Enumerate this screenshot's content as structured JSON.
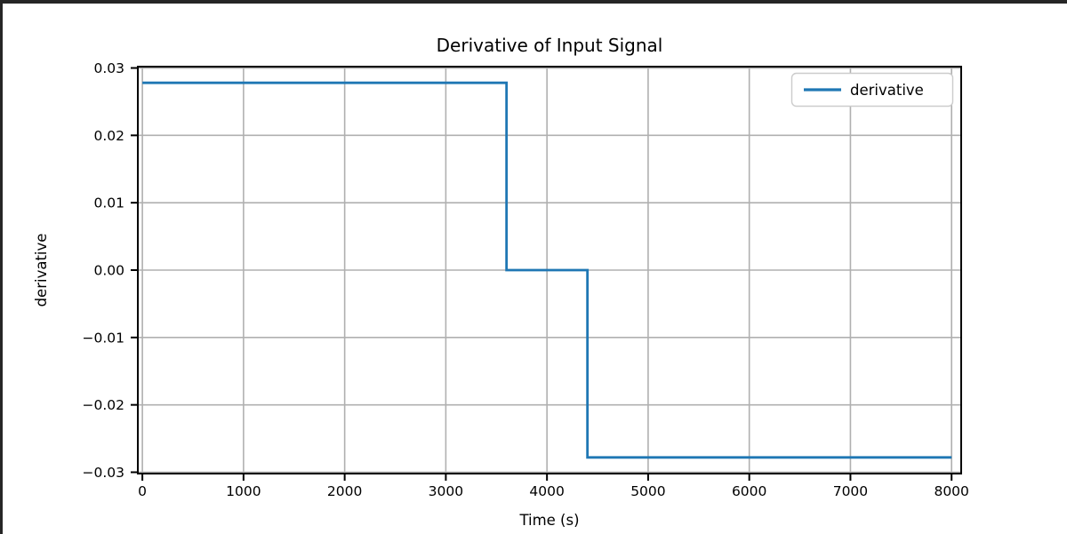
{
  "window": {
    "border_color": "#262626",
    "background": "#ffffff"
  },
  "chart_data": {
    "type": "line",
    "title": "Derivative of Input Signal",
    "xlabel": "Time (s)",
    "ylabel": "derivative",
    "grid": true,
    "legend_position": "upper right",
    "legend": [
      "derivative"
    ],
    "series": [
      {
        "name": "derivative",
        "color": "#1f77b4",
        "points": [
          [
            0,
            0.0278
          ],
          [
            3600,
            0.0278
          ],
          [
            3600,
            0.0
          ],
          [
            4400,
            0.0
          ],
          [
            4400,
            -0.0278
          ],
          [
            8000,
            -0.0278
          ]
        ]
      }
    ],
    "xticks": {
      "values": [
        0,
        1000,
        2000,
        3000,
        4000,
        5000,
        6000,
        7000,
        8000
      ],
      "labels": [
        "0",
        "1000",
        "2000",
        "3000",
        "4000",
        "5000",
        "6000",
        "7000",
        "8000"
      ]
    },
    "yticks": {
      "values": [
        0.03,
        0.02,
        0.01,
        0.0,
        -0.01,
        -0.02,
        -0.03
      ],
      "labels": [
        "0.03",
        "0.02",
        "0.01",
        "0.00",
        "−0.01",
        "−0.02",
        "−0.03"
      ]
    },
    "xlim": [
      -45,
      8095
    ],
    "ylim": [
      -0.0302,
      0.0302
    ],
    "colors": {
      "line": "#1f77b4",
      "grid": "#b0b0b0",
      "spine": "#000000",
      "text": "#000000",
      "legend_border": "#cccccc",
      "legend_background": "#ffffff"
    }
  }
}
